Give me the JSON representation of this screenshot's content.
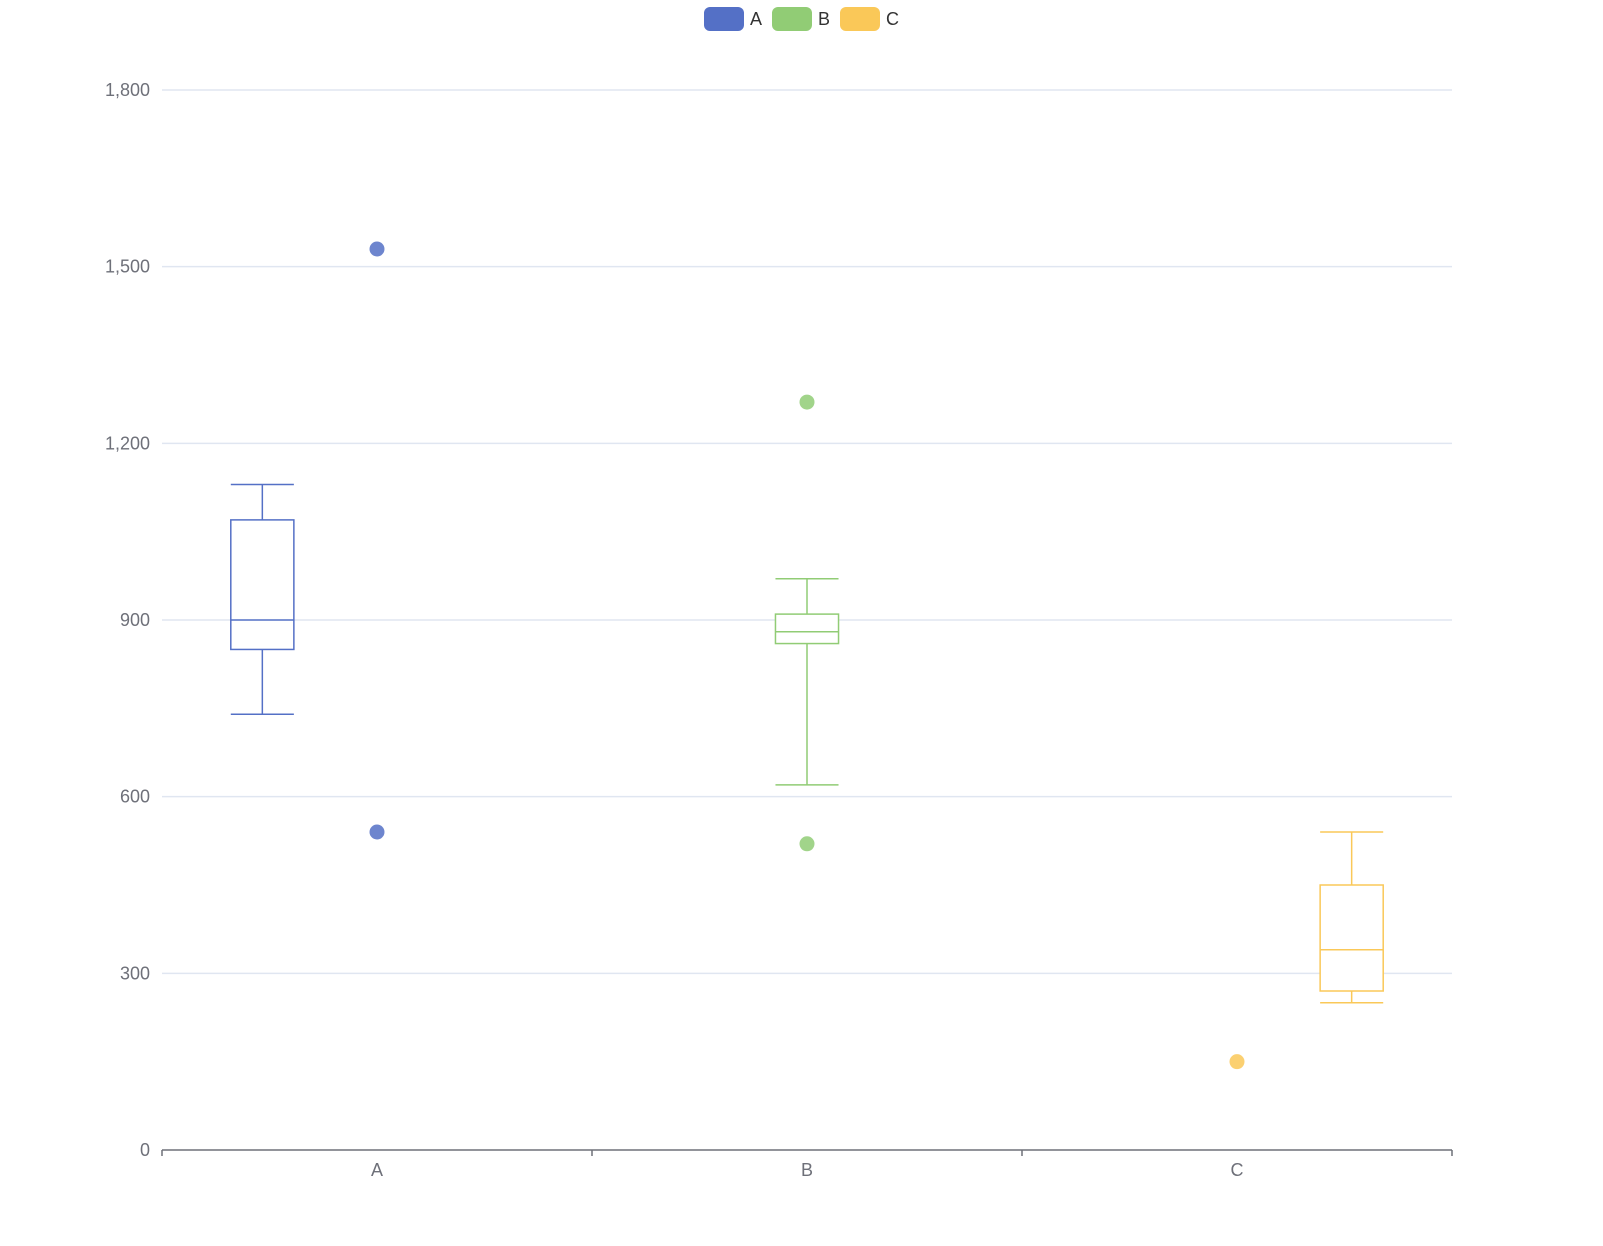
{
  "chart_data": {
    "type": "boxplot",
    "title": "",
    "xlabel": "",
    "ylabel": "",
    "categories": [
      "A",
      "B",
      "C"
    ],
    "ylim": [
      0,
      1800
    ],
    "yticks": [
      0,
      300,
      600,
      900,
      1200,
      1500,
      1800
    ],
    "ytick_labels": [
      "0",
      "300",
      "600",
      "900",
      "1,200",
      "1,500",
      "1,800"
    ],
    "grid": true,
    "legend_position": "top-center",
    "series": [
      {
        "name": "A",
        "color": "#5470c6",
        "min": 740,
        "q1": 850,
        "median": 900,
        "q3": 1070,
        "max": 1130,
        "outliers": [
          {
            "x": "A",
            "y": 1530
          },
          {
            "x": "A",
            "y": 540
          }
        ]
      },
      {
        "name": "B",
        "color": "#91cc75",
        "min": 620,
        "q1": 860,
        "median": 880,
        "q3": 910,
        "max": 970,
        "outliers": [
          {
            "x": "B",
            "y": 1270
          },
          {
            "x": "B",
            "y": 520
          }
        ]
      },
      {
        "name": "C",
        "color": "#fac858",
        "min": 250,
        "q1": 270,
        "median": 340,
        "q3": 450,
        "max": 540,
        "outliers": [
          {
            "x": "C",
            "y": 150
          }
        ]
      }
    ]
  }
}
